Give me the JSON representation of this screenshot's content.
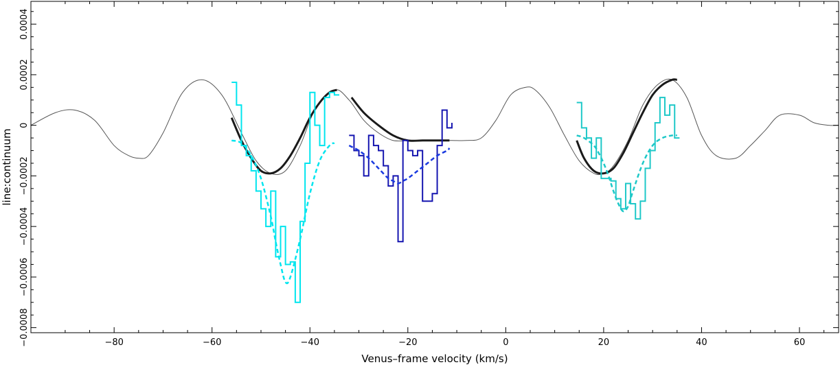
{
  "chart_data": {
    "type": "line",
    "title": "",
    "xlabel": "Venus–frame velocity (km/s)",
    "ylabel": "line:continuum",
    "xlim": [
      -97,
      68
    ],
    "ylim": [
      -0.00082,
      0.00049
    ],
    "x_ticks": [
      -80,
      -60,
      -40,
      -20,
      0,
      20,
      40,
      60
    ],
    "x_tick_labels": [
      "−80",
      "−60",
      "−40",
      "−20",
      "0",
      "20",
      "40",
      "60"
    ],
    "y_ticks": [
      -0.0008,
      -0.0006,
      -0.0004,
      -0.0002,
      0,
      0.0002,
      0.0004
    ],
    "y_tick_labels": [
      "−0.0008",
      "−0.0006",
      "−0.0004",
      "−0.0002",
      "0",
      "0.0002",
      "0.0004"
    ],
    "grid": false,
    "colors": {
      "model": "#555555",
      "model_thick": "#1a1a1a",
      "cyan": "#00e5ee",
      "teal": "#1ec8c8",
      "blue": "#1515b0",
      "blue_fit": "#1a3ae0"
    },
    "series": [
      {
        "kind": "model",
        "x": [
          -97,
          -92,
          -88,
          -84,
          -80,
          -77,
          -75,
          -73,
          -70,
          -66,
          -62,
          -58,
          -54,
          -51,
          -48,
          -45,
          -42,
          -39,
          -35,
          -32,
          -29,
          -26,
          -23,
          -20,
          -17,
          -14,
          -11,
          -8,
          -5,
          -2,
          1,
          4,
          6,
          9,
          12,
          15,
          18,
          20,
          22,
          25,
          28,
          31,
          34,
          37,
          40,
          43,
          47,
          50,
          53,
          56,
          60,
          63,
          66,
          68
        ],
        "y": [
          0.0,
          5e-05,
          6e-05,
          2e-05,
          -8e-05,
          -0.00012,
          -0.00013,
          -0.00012,
          -3e-05,
          0.00013,
          0.00018,
          0.00012,
          -3e-05,
          -0.00014,
          -0.00019,
          -0.00018,
          -8e-05,
          6e-05,
          0.00014,
          0.0001,
          2e-05,
          -3e-05,
          -6e-05,
          -6e-05,
          -6e-05,
          -6e-05,
          -6e-05,
          -6e-05,
          -5e-05,
          2e-05,
          0.00012,
          0.00015,
          0.00014,
          7e-05,
          -4e-05,
          -0.00014,
          -0.00019,
          -0.00019,
          -0.00016,
          -6e-05,
          8e-05,
          0.00016,
          0.00018,
          0.00011,
          -4e-05,
          -0.00012,
          -0.00013,
          -8e-05,
          -2e-05,
          4e-05,
          4e-05,
          1e-05,
          0.0,
          0.0
        ]
      },
      {
        "kind": "model_thick",
        "x": [
          -56,
          -54,
          -52,
          -50,
          -48,
          -46,
          -44,
          -42,
          -40,
          -38,
          -36,
          -34.5
        ],
        "y": [
          3e-05,
          -6e-05,
          -0.00013,
          -0.00018,
          -0.00019,
          -0.00017,
          -0.00012,
          -5e-05,
          3e-05,
          9e-05,
          0.00013,
          0.00014
        ]
      },
      {
        "kind": "model_thick",
        "x": [
          -31.5,
          -29,
          -26,
          -23,
          -20,
          -17,
          -14,
          -11.5
        ],
        "y": [
          0.00011,
          5e-05,
          0.0,
          -4e-05,
          -6e-05,
          -6e-05,
          -6e-05,
          -6e-05
        ]
      },
      {
        "kind": "model_thick",
        "x": [
          14.5,
          16,
          18,
          20,
          22,
          24,
          26,
          28,
          30,
          32,
          34,
          35
        ],
        "y": [
          -6e-05,
          -0.00013,
          -0.00018,
          -0.00019,
          -0.00017,
          -0.00011,
          -3e-05,
          5e-05,
          0.00012,
          0.00016,
          0.00018,
          0.00018
        ]
      },
      {
        "kind": "step",
        "color_key": "cyan",
        "x": [
          -56,
          -55,
          -54,
          -53,
          -52,
          -51,
          -50,
          -49,
          -48,
          -47,
          -46,
          -45,
          -44,
          -43,
          -42,
          -41,
          -40,
          -39,
          -38,
          -37,
          -36,
          -35,
          -34
        ],
        "y": [
          0.00017,
          8e-05,
          -8e-05,
          -0.00012,
          -0.00018,
          -0.00026,
          -0.00033,
          -0.0004,
          -0.00026,
          -0.00052,
          -0.0004,
          -0.00055,
          -0.00054,
          -0.0007,
          -0.00038,
          -0.00015,
          0.00013,
          0.0,
          -8e-05,
          0.00011,
          0.00013,
          0.00012,
          0.00012
        ]
      },
      {
        "kind": "fit",
        "color_key": "cyan",
        "x": [
          -56,
          -54,
          -52,
          -50,
          -48,
          -47,
          -46,
          -45,
          -44,
          -42,
          -40,
          -38,
          -36,
          -35
        ],
        "y": [
          -6e-05,
          -7e-05,
          -0.00012,
          -0.00021,
          -0.00036,
          -0.00046,
          -0.00055,
          -0.00062,
          -0.0006,
          -0.00045,
          -0.00027,
          -0.00014,
          -8e-05,
          -7e-05
        ]
      },
      {
        "kind": "step",
        "color_key": "blue",
        "x": [
          -32,
          -31,
          -30,
          -29,
          -28,
          -27,
          -26,
          -25,
          -24,
          -23,
          -22,
          -21,
          -20,
          -19,
          -18,
          -17,
          -16,
          -15,
          -14,
          -13,
          -12,
          -11
        ],
        "y": [
          -4e-05,
          -0.0001,
          -0.00012,
          -0.0002,
          -4e-05,
          -8e-05,
          -0.0001,
          -0.00016,
          -0.00024,
          -0.0002,
          -0.00046,
          -6e-05,
          -0.0001,
          -0.00012,
          -0.0001,
          -0.0003,
          -0.0003,
          -0.00027,
          -8e-05,
          6e-05,
          -1e-05,
          1e-05
        ]
      },
      {
        "kind": "fit",
        "color_key": "blue_fit",
        "x": [
          -32,
          -30,
          -28,
          -26,
          -24,
          -23,
          -22,
          -21,
          -20,
          -18,
          -16,
          -14,
          -12,
          -11.5
        ],
        "y": [
          -8e-05,
          -0.0001,
          -0.00013,
          -0.00017,
          -0.00021,
          -0.00022,
          -0.00023,
          -0.00022,
          -0.00021,
          -0.00018,
          -0.00015,
          -0.00012,
          -0.0001,
          -9e-05
        ]
      },
      {
        "kind": "step",
        "color_key": "teal",
        "x": [
          14.5,
          15.5,
          16.5,
          17.5,
          18.5,
          19.5,
          20.5,
          21.5,
          22.5,
          23.5,
          24.5,
          25.5,
          26.5,
          27.5,
          28.5,
          29.5,
          30.5,
          31.5,
          32.5,
          33.5,
          34.5,
          35.5
        ],
        "y": [
          9e-05,
          -1e-05,
          -5e-05,
          -0.00013,
          -5e-05,
          -0.00021,
          -0.00021,
          -0.00022,
          -0.00029,
          -0.00033,
          -0.00023,
          -0.00031,
          -0.00037,
          -0.0003,
          -0.00017,
          -0.0001,
          1e-05,
          0.00011,
          4e-05,
          8e-05,
          -5e-05,
          -5e-05
        ]
      },
      {
        "kind": "fit",
        "color_key": "teal",
        "x": [
          14.5,
          16,
          18,
          19,
          20,
          21,
          22,
          23,
          24,
          25,
          26,
          28,
          30,
          32,
          34,
          35
        ],
        "y": [
          -4e-05,
          -5e-05,
          -8e-05,
          -0.00011,
          -0.00015,
          -0.0002,
          -0.00026,
          -0.00031,
          -0.00034,
          -0.00032,
          -0.00026,
          -0.00015,
          -8e-05,
          -5e-05,
          -4e-05,
          -4e-05
        ]
      }
    ]
  }
}
